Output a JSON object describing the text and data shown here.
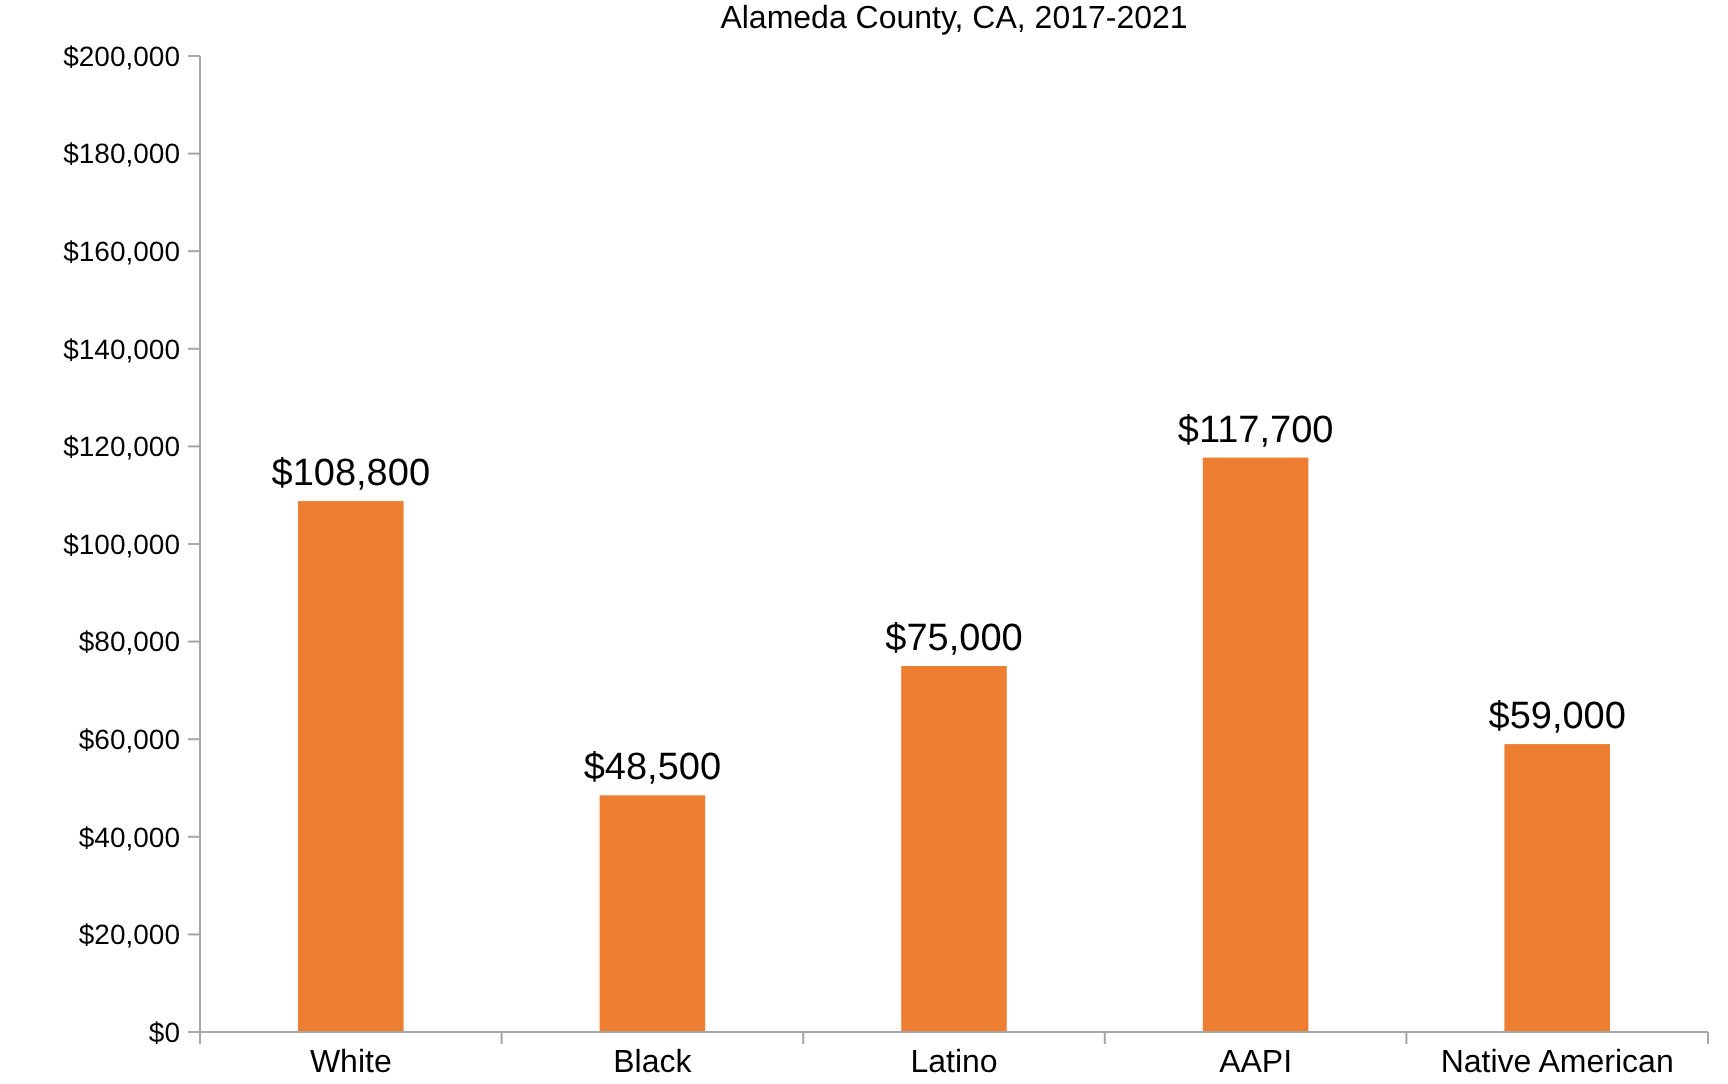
{
  "chart_data": {
    "type": "bar",
    "title": "Alameda County, CA, 2017-2021",
    "categories": [
      "White",
      "Black",
      "Latino",
      "AAPI",
      "Native American"
    ],
    "values": [
      108800,
      48500,
      75000,
      117700,
      59000
    ],
    "value_labels": [
      "$108,800",
      "$48,500",
      "$75,000",
      "$117,700",
      "$59,000"
    ],
    "color": "#ed7d31",
    "ylim": [
      0,
      200000
    ],
    "yticks": [
      {
        "value": 0,
        "label": "$0"
      },
      {
        "value": 20000,
        "label": "$20,000"
      },
      {
        "value": 40000,
        "label": "$40,000"
      },
      {
        "value": 60000,
        "label": "$60,000"
      },
      {
        "value": 80000,
        "label": "$80,000"
      },
      {
        "value": 100000,
        "label": "$100,000"
      },
      {
        "value": 120000,
        "label": "$120,000"
      },
      {
        "value": 140000,
        "label": "$140,000"
      },
      {
        "value": 160000,
        "label": "$160,000"
      },
      {
        "value": 180000,
        "label": "$180,000"
      },
      {
        "value": 200000,
        "label": "$200,000"
      }
    ]
  }
}
